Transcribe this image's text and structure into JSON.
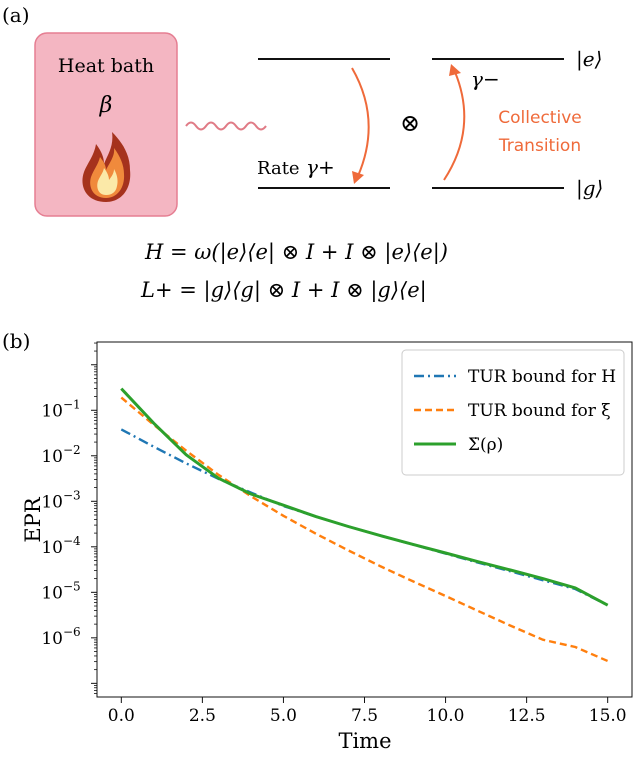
{
  "panel_a": {
    "label": "(a)",
    "heat_bath": {
      "title": "Heat bath",
      "symbol": "β",
      "icon": "flame-icon",
      "fill_color": "#f4b6c2",
      "border_color": "#e57e92"
    },
    "rate_text": "Rate",
    "gamma_plus": "γ+",
    "gamma_minus": "γ−",
    "tensor_symbol": "⊗",
    "ket_e": "|e⟩",
    "ket_g": "|g⟩",
    "collective_line1": "Collective",
    "collective_line2": "Transition",
    "accent_color": "#ef6a3a",
    "wave_color": "#e07b86",
    "equation_H": "H = ω(|e⟩⟨e| ⊗ I + I ⊗ |e⟩⟨e|)",
    "equation_L": "L+ = |g⟩⟨g| ⊗ I + I ⊗ |g⟩⟨e|"
  },
  "panel_b": {
    "label": "(b)"
  },
  "chart_data": {
    "type": "line",
    "xlabel": "Time",
    "ylabel": "EPR",
    "xlim": [
      -0.75,
      15.75
    ],
    "ylim_log10": [
      -7.3,
      0.5
    ],
    "yscale": "log",
    "grid": false,
    "legend_position": "top-right",
    "x_ticks": [
      0.0,
      2.5,
      5.0,
      7.5,
      10.0,
      12.5,
      15.0
    ],
    "x_tick_labels": [
      "0.0",
      "2.5",
      "5.0",
      "7.5",
      "10.0",
      "12.5",
      "15.0"
    ],
    "y_tick_exponents": [
      -1,
      -2,
      -3,
      -4,
      -5,
      -6
    ],
    "y_tick_labels": [
      "10−1",
      "10−2",
      "10−3",
      "10−4",
      "10−5",
      "10−6"
    ],
    "x": [
      0,
      1,
      2,
      3,
      4,
      5,
      6,
      7,
      8,
      9,
      10,
      11,
      12,
      13,
      14,
      15
    ],
    "series": [
      {
        "name": "TUR bound for H",
        "color": "#1f77b4",
        "dash": "dashdot",
        "values": [
          0.038,
          0.0158,
          0.0068,
          0.0031,
          0.00155,
          0.00079,
          0.00046,
          0.00028,
          0.000175,
          0.000112,
          7.1e-05,
          4.5e-05,
          2.9e-05,
          1.85e-05,
          1.18e-05,
          5.2e-06
        ]
      },
      {
        "name": "TUR bound for ξ",
        "color": "#ff7f0e",
        "dash": "dashed",
        "values": [
          0.19,
          0.048,
          0.0129,
          0.0038,
          0.00129,
          0.00048,
          0.000194,
          8.32e-05,
          3.72e-05,
          1.74e-05,
          8.3e-06,
          3.9e-06,
          1.86e-06,
          9.1e-07,
          6.3e-07,
          3.1e-07
        ]
      },
      {
        "name": "Σ̇(ρ)",
        "color": "#2ca02c",
        "dash": "solid",
        "values": [
          0.3,
          0.052,
          0.0105,
          0.0032,
          0.00145,
          0.00082,
          0.00046,
          0.00028,
          0.000175,
          0.000113,
          7.3e-05,
          4.7e-05,
          3.1e-05,
          2e-05,
          1.25e-05,
          5.2e-06
        ]
      }
    ]
  }
}
